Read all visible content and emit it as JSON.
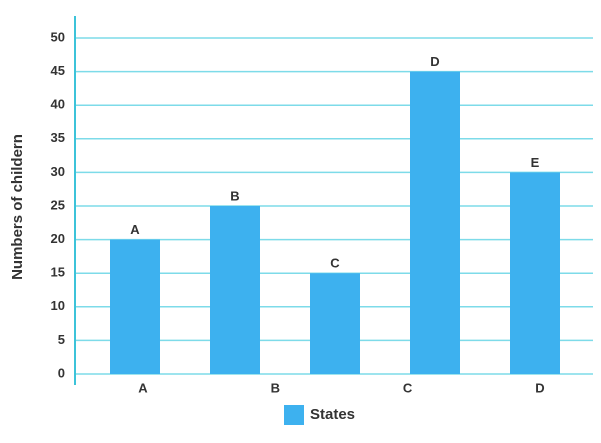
{
  "chart_data": {
    "type": "bar",
    "y_axis_label": "Numbers of childern",
    "categories": [
      "A",
      "B",
      "C",
      "D",
      "E"
    ],
    "x_axis_labels": [
      "A",
      "B",
      "C",
      "D"
    ],
    "series": [
      {
        "name": "States",
        "color": "#3db1ef",
        "values": [
          20,
          25,
          15,
          45,
          30
        ]
      }
    ],
    "ylim": [
      0,
      50
    ],
    "yticks": [
      0,
      5,
      10,
      15,
      20,
      25,
      30,
      35,
      40,
      45,
      50
    ],
    "grid": true,
    "legend": "bottom"
  }
}
